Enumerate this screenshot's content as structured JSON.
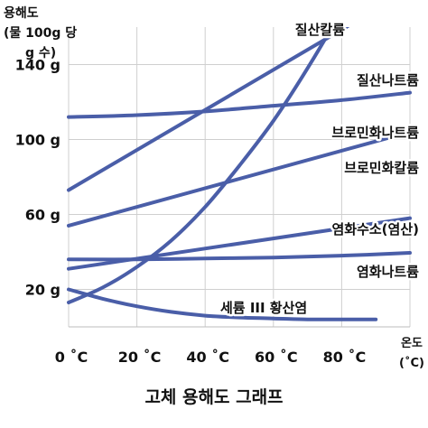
{
  "chart_data": {
    "type": "line",
    "title": "고체 용해도 그래프",
    "ylabel_lines": [
      "용해도",
      "(물 100g 당",
      "g 수)"
    ],
    "xlabel_lines": [
      "온도",
      "(˚C)"
    ],
    "xlim": [
      0,
      100
    ],
    "ylim": [
      0,
      160
    ],
    "x_ticks": [
      {
        "value": 0,
        "label": "0 ˚C"
      },
      {
        "value": 20,
        "label": "20 ˚C"
      },
      {
        "value": 40,
        "label": "40 ˚C"
      },
      {
        "value": 60,
        "label": "60 ˚C"
      },
      {
        "value": 80,
        "label": "80 ˚C"
      }
    ],
    "y_ticks": [
      {
        "value": 20,
        "label": "20 g"
      },
      {
        "value": 60,
        "label": "60 g"
      },
      {
        "value": 100,
        "label": "100 g"
      },
      {
        "value": 140,
        "label": "140 g"
      }
    ],
    "grid": true,
    "line_color": "#4a5ea8",
    "series": [
      {
        "name": "질산칼륨",
        "x": [
          0,
          10,
          20,
          30,
          40,
          50,
          60,
          70,
          80,
          83
        ],
        "y": [
          13,
          21,
          32,
          46,
          64,
          86,
          110,
          138,
          169,
          180
        ]
      },
      {
        "name": "질산나트륨",
        "x": [
          0,
          100
        ],
        "y": [
          73,
          180
        ]
      },
      {
        "name": "브로민화나트륨",
        "x": [
          0,
          20,
          40,
          60,
          80,
          100
        ],
        "y": [
          112,
          113,
          115,
          118,
          121,
          125
        ]
      },
      {
        "name": "브로민화칼륨",
        "x": [
          0,
          100
        ],
        "y": [
          54,
          104
        ]
      },
      {
        "name": "염화수소(염산)",
        "x": [
          0,
          100
        ],
        "y": [
          31,
          58
        ]
      },
      {
        "name": "염화나트륨",
        "x": [
          0,
          20,
          40,
          60,
          80,
          100
        ],
        "y": [
          36,
          36,
          36.5,
          37,
          38,
          39.5
        ]
      },
      {
        "name": "세륨 III 황산염",
        "x": [
          0,
          10,
          20,
          30,
          40,
          50,
          60,
          70,
          80,
          90
        ],
        "y": [
          20,
          15,
          11,
          8,
          6,
          5,
          4.5,
          4,
          4,
          4
        ]
      }
    ]
  }
}
